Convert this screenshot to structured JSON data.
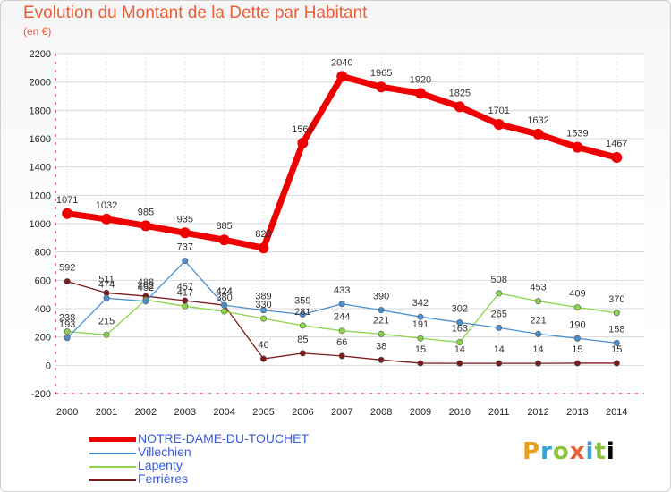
{
  "chart_data": {
    "type": "line",
    "title": "Evolution du Montant de la Dette par Habitant",
    "unit": "(en €)",
    "x": [
      "2000",
      "2001",
      "2002",
      "2003",
      "2004",
      "2005",
      "2006",
      "2007",
      "2008",
      "2009",
      "2010",
      "2011",
      "2012",
      "2013",
      "2014"
    ],
    "ylim": [
      -200,
      2200
    ],
    "yticks": [
      -200,
      0,
      200,
      400,
      600,
      800,
      1000,
      1200,
      1400,
      1600,
      1800,
      2000,
      2200
    ],
    "grid": true,
    "legend_position": "bottom-left",
    "series": [
      {
        "name": "NOTRE-DAME-DU-TOUCHET",
        "color": "#ee0000",
        "values": [
          1071,
          1032,
          985,
          935,
          885,
          828,
          1569,
          2040,
          1965,
          1920,
          1825,
          1701,
          1632,
          1539,
          1467
        ]
      },
      {
        "name": "Villechien",
        "color": "#4a90d0",
        "values": [
          193,
          474,
          452,
          737,
          424,
          389,
          359,
          433,
          390,
          342,
          302,
          265,
          221,
          190,
          158
        ]
      },
      {
        "name": "Lapenty",
        "color": "#8cd44a",
        "values": [
          238,
          215,
          462,
          417,
          380,
          330,
          281,
          244,
          221,
          191,
          163,
          508,
          453,
          409,
          370
        ]
      },
      {
        "name": "Ferrières",
        "color": "#7a1a1a",
        "values": [
          592,
          511,
          488,
          457,
          424,
          46,
          85,
          66,
          38,
          15,
          14,
          14,
          14,
          15,
          15
        ]
      }
    ]
  },
  "logo": {
    "letters": [
      "P",
      "r",
      "o",
      "x",
      "i",
      "t",
      "i"
    ]
  }
}
